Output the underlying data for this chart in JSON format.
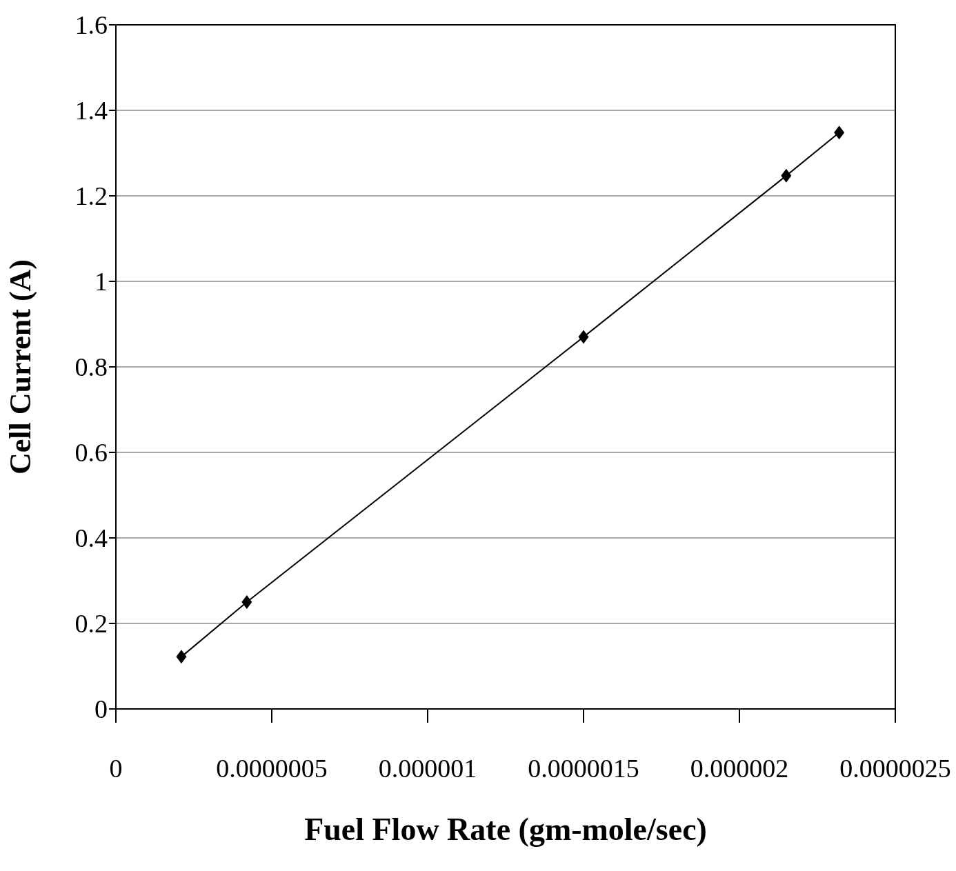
{
  "chart_data": {
    "type": "line",
    "xlabel": "Fuel Flow Rate (gm-mole/sec)",
    "ylabel": "Cell Current (A)",
    "x": [
      2.1e-07,
      4.2e-07,
      1.5e-06,
      2.15e-06,
      2.32e-06
    ],
    "series": [
      {
        "color": "#000000",
        "values": [
          0.122,
          0.25,
          0.87,
          1.247,
          1.348
        ]
      }
    ],
    "xlim": [
      0,
      2.5e-06
    ],
    "xticks": [
      0,
      {
        "value": 5e-07,
        "label": "0.0000005"
      },
      {
        "value": 1e-06,
        "label": "0.000001"
      },
      {
        "value": 1.5e-06,
        "label": "0.0000015"
      },
      {
        "value": 2e-06,
        "label": "0.000002"
      },
      {
        "value": 2.5e-06,
        "label": "0.0000025"
      }
    ],
    "ylim": [
      0,
      1.6
    ],
    "yticks": [
      0,
      0.2,
      0.4,
      0.6,
      0.8,
      1,
      1.2,
      1.4,
      1.6
    ],
    "grid": "y",
    "marker": "diamond",
    "line_style": "solid"
  }
}
